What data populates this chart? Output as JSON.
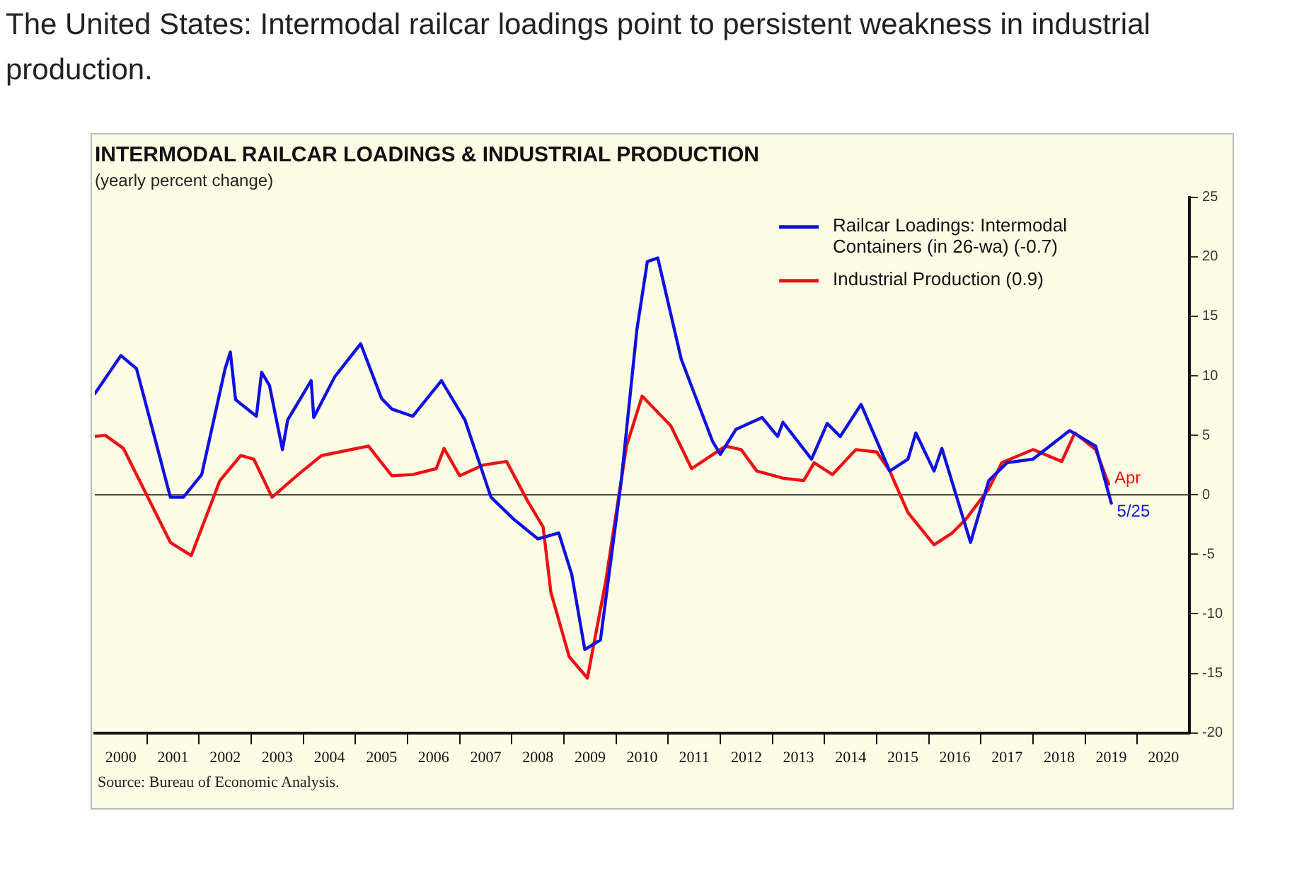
{
  "chart_data": {
    "type": "line",
    "title": "INTERMODAL RAILCAR LOADINGS & INDUSTRIAL PRODUCTION",
    "subtitle": "(yearly percent change)",
    "xlim": [
      2000,
      2021
    ],
    "xticks": [
      {
        "value": 2000.5,
        "label": "2000"
      },
      {
        "value": 2001,
        "label": null
      },
      {
        "value": 2001.5,
        "label": "2001"
      },
      {
        "value": 2002,
        "label": null
      },
      {
        "value": 2002.5,
        "label": "2002"
      },
      {
        "value": 2003,
        "label": null
      },
      {
        "value": 2003.5,
        "label": "2003"
      },
      {
        "value": 2004,
        "label": null
      },
      {
        "value": 2004.5,
        "label": "2004"
      },
      {
        "value": 2005,
        "label": null
      },
      {
        "value": 2005.5,
        "label": "2005"
      },
      {
        "value": 2006,
        "label": null
      },
      {
        "value": 2006.5,
        "label": "2006"
      },
      {
        "value": 2007,
        "label": null
      },
      {
        "value": 2007.5,
        "label": "2007"
      },
      {
        "value": 2008,
        "label": null
      },
      {
        "value": 2008.5,
        "label": "2008"
      },
      {
        "value": 2009,
        "label": null
      },
      {
        "value": 2009.5,
        "label": "2009"
      },
      {
        "value": 2010,
        "label": null
      },
      {
        "value": 2010.5,
        "label": "2010"
      },
      {
        "value": 2011,
        "label": null
      },
      {
        "value": 2011.5,
        "label": "2011"
      },
      {
        "value": 2012,
        "label": null
      },
      {
        "value": 2012.5,
        "label": "2012"
      },
      {
        "value": 2013,
        "label": null
      },
      {
        "value": 2013.5,
        "label": "2013"
      },
      {
        "value": 2014,
        "label": null
      },
      {
        "value": 2014.5,
        "label": "2014"
      },
      {
        "value": 2015,
        "label": null
      },
      {
        "value": 2015.5,
        "label": "2015"
      },
      {
        "value": 2016,
        "label": null
      },
      {
        "value": 2016.5,
        "label": "2016"
      },
      {
        "value": 2017,
        "label": null
      },
      {
        "value": 2017.5,
        "label": "2017"
      },
      {
        "value": 2018,
        "label": null
      },
      {
        "value": 2018.5,
        "label": "2018"
      },
      {
        "value": 2019,
        "label": null
      },
      {
        "value": 2019.5,
        "label": "2019"
      },
      {
        "value": 2020,
        "label": null
      },
      {
        "value": 2020.5,
        "label": "2020"
      }
    ],
    "ylim": [
      -20,
      25
    ],
    "yticks": [
      -20,
      -15,
      -10,
      -5,
      0,
      5,
      10,
      15,
      20,
      25
    ],
    "grid": false,
    "legend": "top right",
    "marker": "none",
    "line_style": "solid",
    "ref_lines": [
      {
        "axis": "y",
        "value": 0,
        "color": "#333333"
      }
    ],
    "series": [
      {
        "name": "Railcar Loadings: Intermodal Containers (in 26-wa) (-0.7)",
        "color": "#1010e0",
        "x": [
          2000.0,
          2000.5,
          2000.8,
          2001.45,
          2001.7,
          2002.05,
          2002.5,
          2002.6,
          2002.7,
          2003.1,
          2003.2,
          2003.35,
          2003.6,
          2003.7,
          2004.15,
          2004.2,
          2004.6,
          2005.1,
          2005.5,
          2005.7,
          2006.1,
          2006.65,
          2007.1,
          2007.6,
          2008.05,
          2008.5,
          2008.9,
          2009.15,
          2009.4,
          2009.7,
          2010.1,
          2010.4,
          2010.6,
          2010.8,
          2011.25,
          2011.85,
          2012.0,
          2012.3,
          2012.8,
          2013.1,
          2013.2,
          2013.75,
          2014.05,
          2014.3,
          2014.7,
          2015.25,
          2015.6,
          2015.75,
          2016.1,
          2016.25,
          2016.8,
          2017.15,
          2017.5,
          2018.0,
          2018.7,
          2019.2,
          2019.5
        ],
        "values": [
          8.5,
          11.7,
          10.6,
          -0.2,
          -0.2,
          1.7,
          10.6,
          12,
          8,
          6.6,
          10.3,
          9.2,
          3.8,
          6.3,
          9.6,
          6.5,
          9.9,
          12.7,
          8.1,
          7.2,
          6.6,
          9.6,
          6.3,
          -0.2,
          -2.1,
          -3.7,
          -3.2,
          -6.7,
          -13,
          -12.2,
          1.2,
          13.9,
          19.6,
          19.9,
          11.4,
          4.5,
          3.4,
          5.5,
          6.5,
          4.9,
          6.1,
          3,
          6,
          4.9,
          7.6,
          2,
          3,
          5.2,
          2,
          3.9,
          -4,
          1.2,
          2.7,
          3,
          5.4,
          4.1,
          -0.7
        ]
      },
      {
        "name": "Industrial Production (0.9)",
        "color": "#ee1111",
        "x": [
          2000.0,
          2000.2,
          2000.55,
          2001.45,
          2001.85,
          2002.4,
          2002.8,
          2003.05,
          2003.4,
          2003.9,
          2004.35,
          2005.25,
          2005.7,
          2006.1,
          2006.55,
          2006.7,
          2007.0,
          2007.45,
          2007.9,
          2008.3,
          2008.6,
          2008.75,
          2009.1,
          2009.45,
          2009.8,
          2010.2,
          2010.5,
          2011.05,
          2011.45,
          2012.1,
          2012.4,
          2012.7,
          2013.2,
          2013.6,
          2013.8,
          2014.15,
          2014.6,
          2015.0,
          2015.25,
          2015.6,
          2016.1,
          2016.45,
          2016.7,
          2017.15,
          2017.4,
          2018.0,
          2018.55,
          2018.8,
          2019.2,
          2019.45
        ],
        "values": [
          4.9,
          5,
          3.9,
          -4,
          -5.1,
          1.2,
          3.3,
          3,
          -0.2,
          1.7,
          3.3,
          4.1,
          1.6,
          1.7,
          2.2,
          3.9,
          1.6,
          2.5,
          2.8,
          -0.5,
          -2.7,
          -8.2,
          -13.6,
          -15.4,
          -7.3,
          4.1,
          8.3,
          5.8,
          2.2,
          4.1,
          3.8,
          2,
          1.4,
          1.2,
          2.7,
          1.7,
          3.8,
          3.6,
          2,
          -1.5,
          -4.2,
          -3.2,
          -2.1,
          0.5,
          2.7,
          3.8,
          2.8,
          5.2,
          3.8,
          0.9
        ]
      }
    ],
    "annotations": [
      "The United States: Intermodal railcar loadings point to persistent weakness in industrial production.",
      {
        "text": "Apr",
        "x": 2019.45,
        "y": 0.9
      },
      {
        "text": "5/25",
        "x": 2019.5,
        "y": -0.7
      },
      "Source: Bureau of Economic Analysis."
    ]
  }
}
